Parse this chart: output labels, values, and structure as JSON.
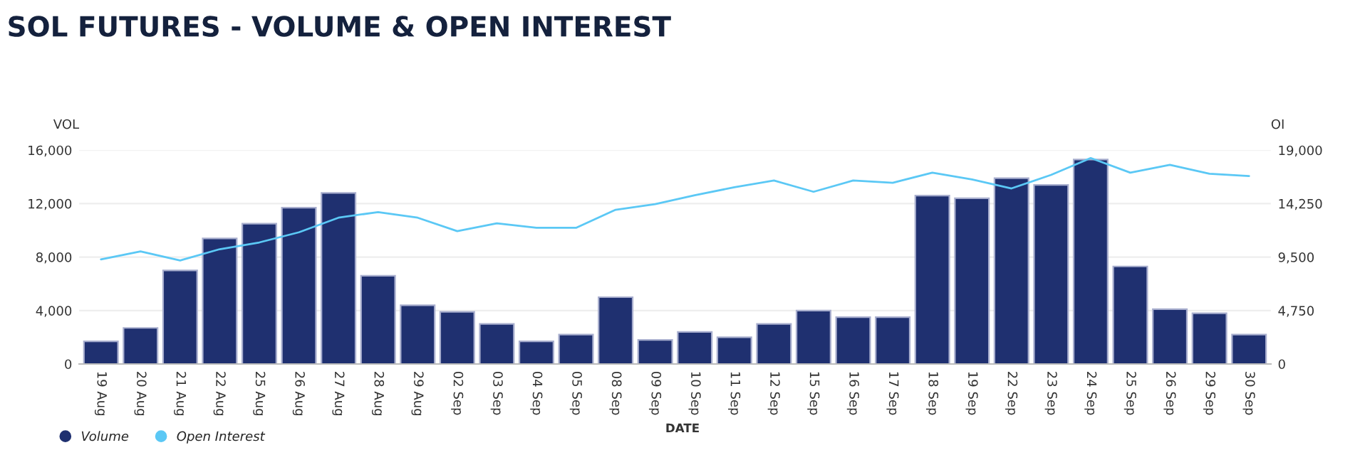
{
  "chart_data": {
    "type": "bar",
    "title": "SOL FUTURES - VOLUME & OPEN INTEREST",
    "xlabel": "DATE",
    "ylabel": "VOL",
    "y2label": "OI",
    "categories": [
      "19 Aug",
      "20 Aug",
      "21 Aug",
      "22 Aug",
      "25 Aug",
      "26 Aug",
      "27 Aug",
      "28 Aug",
      "29 Aug",
      "02 Sep",
      "03 Sep",
      "04 Sep",
      "05 Sep",
      "08 Sep",
      "09 Sep",
      "10 Sep",
      "11 Sep",
      "12 Sep",
      "15 Sep",
      "16 Sep",
      "17 Sep",
      "18 Sep",
      "19 Sep",
      "22 Sep",
      "23 Sep",
      "24 Sep",
      "25 Sep",
      "26 Sep",
      "29 Sep",
      "30 Sep"
    ],
    "series": [
      {
        "name": "Volume",
        "color": "#1f3070",
        "values": [
          1700,
          2700,
          7000,
          9400,
          10500,
          11700,
          12800,
          6600,
          4400,
          3900,
          3000,
          1700,
          2200,
          5000,
          1800,
          2400,
          2000,
          3000,
          4000,
          3500,
          3500,
          12600,
          12400,
          13900,
          13400,
          15300,
          7300,
          4100,
          3800,
          2200
        ]
      },
      {
        "name": "Open Interest",
        "type": "line",
        "axis": "y2",
        "color": "#5bc8f5",
        "values": [
          9300,
          10000,
          9200,
          10200,
          10800,
          11700,
          13000,
          13500,
          13000,
          11800,
          12500,
          12100,
          12100,
          13700,
          14200,
          15000,
          15700,
          16300,
          15300,
          16300,
          16100,
          17000,
          16400,
          15600,
          16800,
          18300,
          17000,
          17700,
          16900,
          16700
        ]
      }
    ],
    "ylim": [
      0,
      16000
    ],
    "yticks": [
      {
        "value": 0,
        "label": "0"
      },
      {
        "value": 4000,
        "label": "4,000"
      },
      {
        "value": 8000,
        "label": "8,000"
      },
      {
        "value": 12000,
        "label": "12,000"
      },
      {
        "value": 16000,
        "label": "16,000"
      }
    ],
    "y2lim": [
      0,
      19000
    ],
    "y2ticks": [
      {
        "value": 0,
        "label": "0"
      },
      {
        "value": 4750,
        "label": "4,750"
      },
      {
        "value": 9500,
        "label": "9,500"
      },
      {
        "value": 14250,
        "label": "14,250"
      },
      {
        "value": 19000,
        "label": "19,000"
      }
    ],
    "grid": "y",
    "legend": "bottom left",
    "marker": "none",
    "line_style": "solid"
  }
}
